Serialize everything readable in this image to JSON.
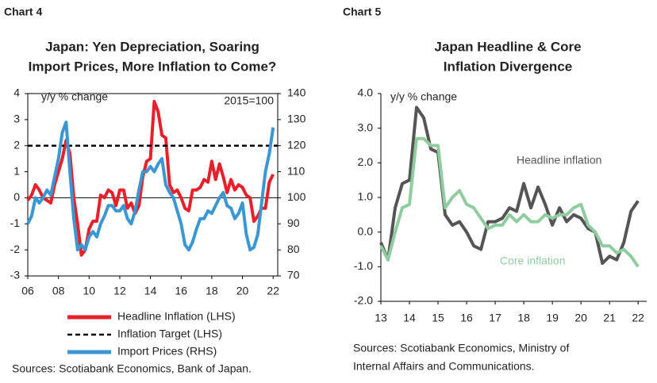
{
  "chart_data": [
    {
      "type": "line",
      "chart_label": "Chart 4",
      "title": [
        "Japan: Yen Depreciation, Soaring",
        "Import Prices, More Inflation to Come?"
      ],
      "y_label": "y/y % change",
      "annotation": "2015=100",
      "source": [
        "Sources: Scotiabank Economics, Bank of Japan."
      ],
      "legend": "bottom",
      "zero_line": true,
      "x": [
        2006,
        2006.25,
        2006.5,
        2006.75,
        2007,
        2007.25,
        2007.5,
        2007.75,
        2008,
        2008.25,
        2008.5,
        2008.75,
        2009,
        2009.25,
        2009.5,
        2009.75,
        2010,
        2010.25,
        2010.5,
        2010.75,
        2011,
        2011.25,
        2011.5,
        2011.75,
        2012,
        2012.25,
        2012.5,
        2012.75,
        2013,
        2013.25,
        2013.5,
        2013.75,
        2014,
        2014.25,
        2014.5,
        2014.75,
        2015,
        2015.25,
        2015.5,
        2015.75,
        2016,
        2016.25,
        2016.5,
        2016.75,
        2017,
        2017.25,
        2017.5,
        2017.75,
        2018,
        2018.25,
        2018.5,
        2018.75,
        2019,
        2019.25,
        2019.5,
        2019.75,
        2020,
        2020.25,
        2020.5,
        2020.75,
        2021,
        2021.25,
        2021.5,
        2021.75,
        2022
      ],
      "xlim": [
        2006,
        2022.3
      ],
      "xticks": [
        {
          "value": 2006,
          "label": "06"
        },
        {
          "value": 2008,
          "label": "08"
        },
        {
          "value": 2010,
          "label": "10"
        },
        {
          "value": 2012,
          "label": "12"
        },
        {
          "value": 2014,
          "label": "14"
        },
        {
          "value": 2016,
          "label": "16"
        },
        {
          "value": 2018,
          "label": "18"
        },
        {
          "value": 2020,
          "label": "20"
        },
        {
          "value": 2022,
          "label": "22"
        }
      ],
      "ylim": [
        -3,
        4
      ],
      "yticks": [
        -3,
        -2,
        -1,
        0,
        1,
        2,
        3,
        4
      ],
      "y2lim": [
        70,
        140
      ],
      "y2ticks": [
        70,
        80,
        90,
        100,
        110,
        120,
        130,
        140
      ],
      "series": [
        {
          "name": "Headline Inflation (LHS)",
          "color": "#e8202a",
          "values": [
            -0.1,
            0.1,
            0.5,
            0.3,
            0.0,
            -0.1,
            -0.2,
            0.5,
            1.0,
            1.5,
            2.2,
            1.7,
            0.0,
            -1.0,
            -2.2,
            -2.0,
            -1.2,
            -0.9,
            -0.9,
            0.1,
            0.0,
            0.3,
            0.2,
            -0.3,
            0.3,
            0.3,
            -0.4,
            -0.2,
            -0.6,
            -0.3,
            0.8,
            1.4,
            1.5,
            3.7,
            3.3,
            2.4,
            2.3,
            0.5,
            0.2,
            0.3,
            0.0,
            -0.4,
            -0.5,
            0.3,
            0.3,
            0.4,
            0.7,
            0.6,
            1.4,
            0.7,
            1.3,
            0.8,
            0.2,
            0.7,
            0.3,
            0.5,
            0.4,
            0.1,
            0.0,
            -0.9,
            -0.7,
            -0.4,
            -0.4,
            0.6,
            0.9
          ]
        },
        {
          "name": "Inflation Target (LHS)",
          "color": "#000000",
          "dash": true,
          "x": [
            2006,
            2022.3
          ],
          "values": [
            2,
            2
          ]
        },
        {
          "name": "Import Prices (RHS)",
          "color": "#3b97d3",
          "axis": "y2",
          "values": [
            90,
            93,
            100,
            98,
            100,
            103,
            101,
            108,
            115,
            125,
            129,
            110,
            92,
            80,
            82,
            80,
            85,
            87,
            85,
            90,
            93,
            97,
            97,
            95,
            95,
            97,
            92,
            90,
            95,
            103,
            110,
            110,
            112,
            110,
            113,
            115,
            105,
            102,
            100,
            95,
            90,
            82,
            80,
            83,
            88,
            92,
            92,
            95,
            94,
            97,
            100,
            102,
            97,
            96,
            92,
            94,
            98,
            86,
            80,
            81,
            86,
            98,
            110,
            117,
            127
          ]
        }
      ]
    },
    {
      "type": "line",
      "chart_label": "Chart 5",
      "title": [
        "Japan Headline & Core",
        "Inflation Divergence"
      ],
      "y_label": "y/y % change",
      "source": [
        "Sources: Scotiabank Economics, Ministry of",
        "Internal Affairs and Communications."
      ],
      "legend": "inline",
      "zero_line": false,
      "x": [
        2013,
        2013.25,
        2013.5,
        2013.75,
        2014,
        2014.25,
        2014.5,
        2014.75,
        2015,
        2015.25,
        2015.5,
        2015.75,
        2016,
        2016.25,
        2016.5,
        2016.75,
        2017,
        2017.25,
        2017.5,
        2017.75,
        2018,
        2018.25,
        2018.5,
        2018.75,
        2019,
        2019.25,
        2019.5,
        2019.75,
        2020,
        2020.25,
        2020.5,
        2020.75,
        2021,
        2021.25,
        2021.5,
        2021.75,
        2022
      ],
      "xlim": [
        2013,
        2022.3
      ],
      "xticks": [
        {
          "value": 2013,
          "label": "13"
        },
        {
          "value": 2014,
          "label": "14"
        },
        {
          "value": 2015,
          "label": "15"
        },
        {
          "value": 2016,
          "label": "16"
        },
        {
          "value": 2017,
          "label": "17"
        },
        {
          "value": 2018,
          "label": "18"
        },
        {
          "value": 2019,
          "label": "19"
        },
        {
          "value": 2020,
          "label": "20"
        },
        {
          "value": 2021,
          "label": "21"
        },
        {
          "value": 2022,
          "label": "22"
        }
      ],
      "ylim": [
        -2,
        4
      ],
      "yticks": [
        {
          "value": -2,
          "label": "-2.0"
        },
        {
          "value": -1,
          "label": "-1.0"
        },
        {
          "value": 0,
          "label": "0.0"
        },
        {
          "value": 1,
          "label": "1.0"
        },
        {
          "value": 2,
          "label": "2.0"
        },
        {
          "value": 3,
          "label": "3.0"
        },
        {
          "value": 4,
          "label": "4.0"
        }
      ],
      "series": [
        {
          "name": "Headline inflation",
          "color": "#555555",
          "values": [
            -0.3,
            -0.8,
            0.7,
            1.4,
            1.5,
            3.6,
            3.3,
            2.4,
            2.3,
            0.5,
            0.2,
            0.3,
            0.0,
            -0.4,
            -0.5,
            0.3,
            0.3,
            0.4,
            0.7,
            0.6,
            1.4,
            0.7,
            1.3,
            0.8,
            0.2,
            0.7,
            0.3,
            0.5,
            0.4,
            0.1,
            0.0,
            -0.9,
            -0.7,
            -0.8,
            -0.3,
            0.6,
            0.9
          ]
        },
        {
          "name": "Core inflation",
          "color": "#8fcca0",
          "values": [
            -0.4,
            -0.8,
            0.0,
            0.7,
            0.8,
            2.7,
            2.7,
            2.5,
            2.5,
            0.7,
            1.0,
            1.2,
            0.8,
            0.7,
            0.4,
            0.1,
            0.2,
            0.2,
            0.5,
            0.3,
            0.5,
            0.3,
            0.3,
            0.5,
            0.4,
            0.5,
            0.5,
            0.7,
            0.8,
            0.2,
            0.0,
            -0.4,
            -0.4,
            -0.6,
            -0.5,
            -0.7,
            -1.0
          ]
        }
      ]
    }
  ]
}
